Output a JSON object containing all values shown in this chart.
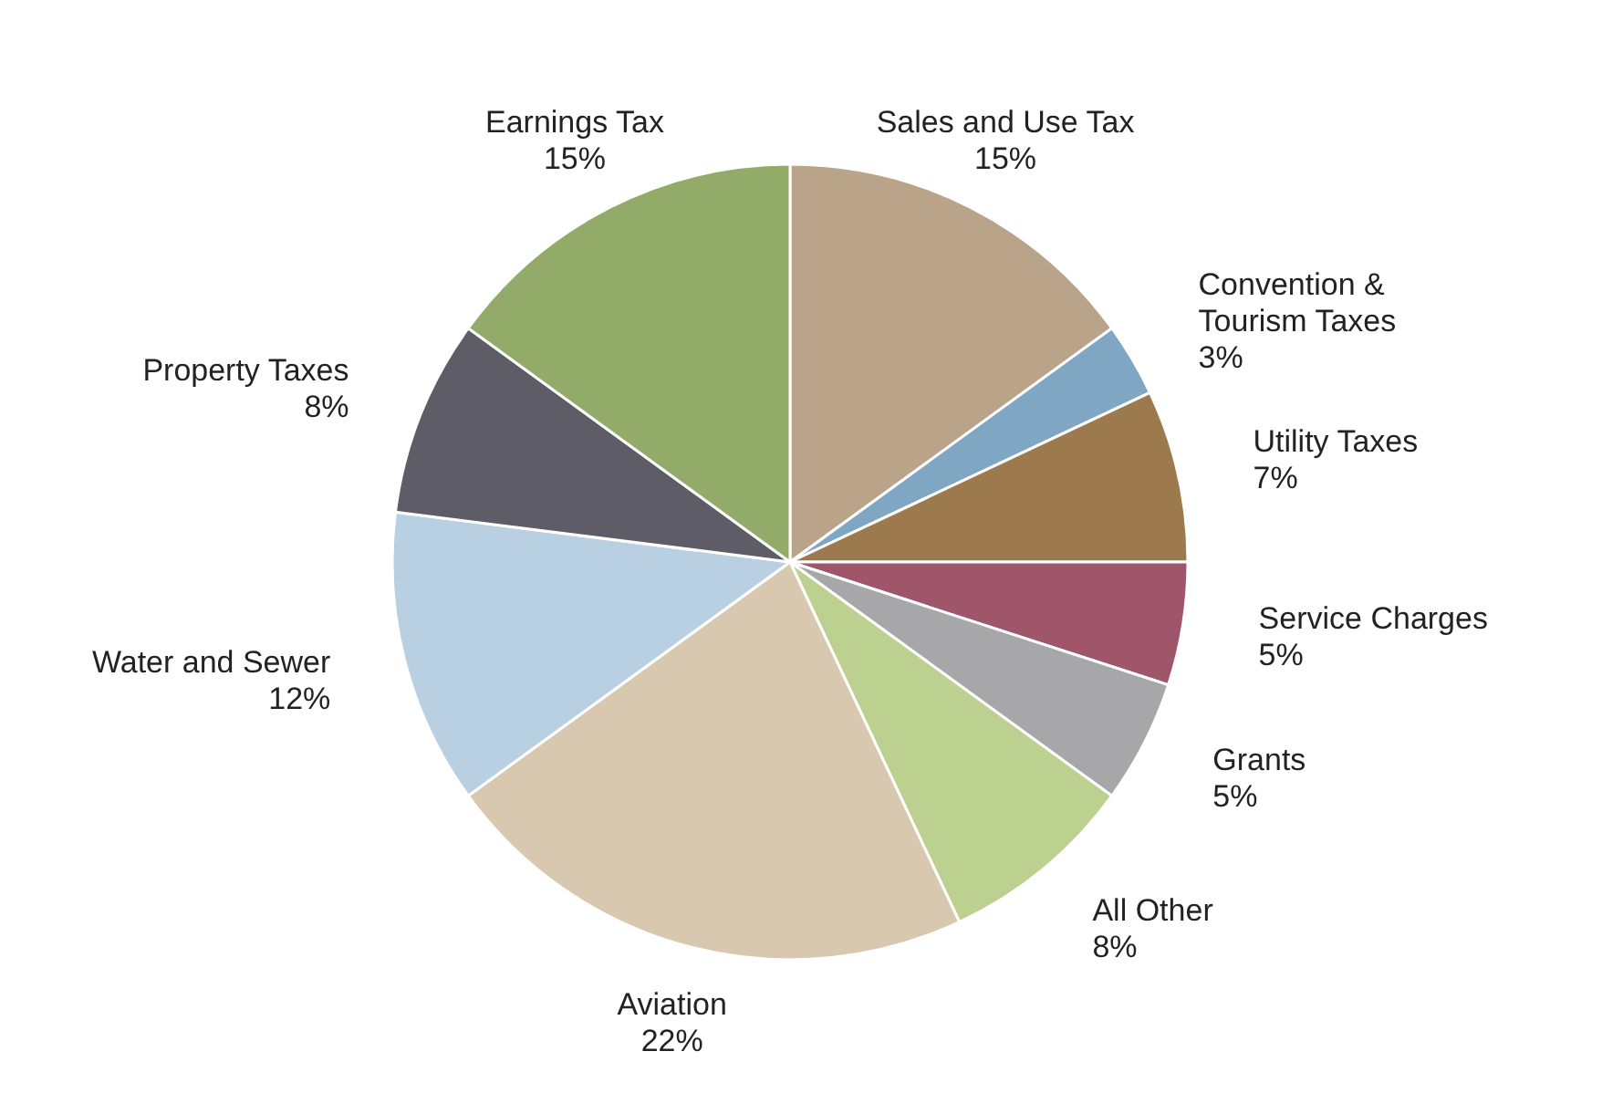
{
  "chart_data": {
    "type": "pie",
    "categories": [
      "Sales and Use Tax",
      "Convention & Tourism Taxes",
      "Utility Taxes",
      "Service Charges",
      "Grants",
      "All Other",
      "Aviation",
      "Water and Sewer",
      "Property Taxes",
      "Earnings Tax"
    ],
    "values": [
      15,
      3,
      7,
      5,
      5,
      8,
      22,
      12,
      8,
      15
    ],
    "colors": [
      "#b9a389",
      "#7fa7c4",
      "#9c7a4e",
      "#a0566a",
      "#a7a7aa",
      "#bcd08f",
      "#d8c8b0",
      "#b9d0e2",
      "#5e5c66",
      "#93ab68"
    ],
    "value_labels": [
      "15%",
      "3%",
      "7%",
      "5%",
      "5%",
      "8%",
      "22%",
      "12%",
      "8%",
      "15%"
    ]
  }
}
